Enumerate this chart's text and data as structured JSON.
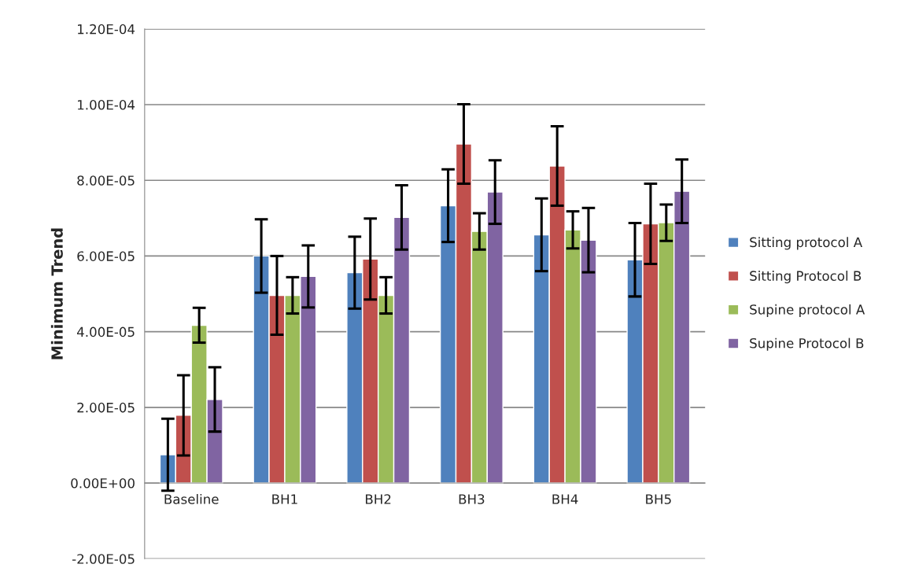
{
  "chart_data": {
    "type": "bar",
    "ylabel": "Minimum Trend",
    "categories": [
      "Baseline",
      "BH1",
      "BH2",
      "BH3",
      "BH4",
      "BH5"
    ],
    "series": [
      {
        "name": "Sitting protocol A",
        "color": "#4f81bd",
        "values": [
          7.5e-06,
          6e-05,
          5.56e-05,
          7.33e-05,
          6.56e-05,
          5.9e-05
        ],
        "errors": [
          9.5e-06,
          9.7e-06,
          9.5e-06,
          9.6e-06,
          9.6e-06,
          9.7e-06
        ]
      },
      {
        "name": "Sitting Protocol B",
        "color": "#c0504d",
        "values": [
          1.79e-05,
          4.96e-05,
          5.92e-05,
          8.96e-05,
          8.38e-05,
          6.85e-05
        ],
        "errors": [
          1.06e-05,
          1.04e-05,
          1.07e-05,
          1.05e-05,
          1.05e-05,
          1.06e-05
        ]
      },
      {
        "name": "Supine protocol A",
        "color": "#9bbb59",
        "values": [
          4.17e-05,
          4.96e-05,
          4.96e-05,
          6.65e-05,
          6.69e-05,
          6.88e-05
        ],
        "errors": [
          4.6e-06,
          4.8e-06,
          4.8e-06,
          4.8e-06,
          4.9e-06,
          4.8e-06
        ]
      },
      {
        "name": "Supine Protocol B",
        "color": "#8064a2",
        "values": [
          2.21e-05,
          5.46e-05,
          7.02e-05,
          7.69e-05,
          6.42e-05,
          7.71e-05
        ],
        "errors": [
          8.5e-06,
          8.2e-06,
          8.5e-06,
          8.4e-06,
          8.5e-06,
          8.4e-06
        ]
      }
    ],
    "ylim": [
      -2e-05,
      0.00012
    ],
    "yticks": [
      {
        "value": -2e-05,
        "label": "-2.00E-05"
      },
      {
        "value": 0,
        "label": "0.00E+00"
      },
      {
        "value": 2e-05,
        "label": "2.00E-05"
      },
      {
        "value": 4e-05,
        "label": "4.00E-05"
      },
      {
        "value": 6e-05,
        "label": "6.00E-05"
      },
      {
        "value": 8e-05,
        "label": "8.00E-05"
      },
      {
        "value": 0.0001,
        "label": "1.00E-04"
      },
      {
        "value": 0.00012,
        "label": "1.20E-04"
      }
    ],
    "grid": "y",
    "legend": "right"
  }
}
